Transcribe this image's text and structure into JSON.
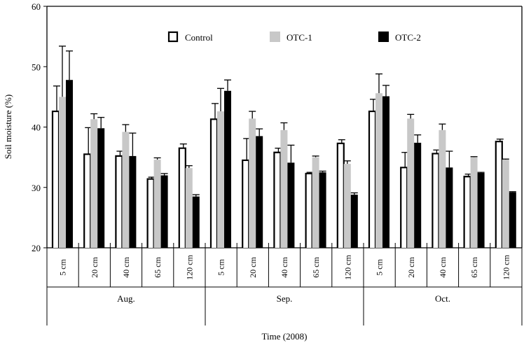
{
  "chart_data": {
    "type": "bar",
    "title": "",
    "ylabel": "Soil moisture (%)",
    "xlabel": "Time (2008)",
    "ylim": [
      20,
      60
    ],
    "yticks": [
      "20",
      "30",
      "40",
      "50",
      "60"
    ],
    "months": [
      "Aug.",
      "Sep.",
      "Oct."
    ],
    "depths": [
      "5 cm",
      "20 cm",
      "40 cm",
      "65 cm",
      "120 cm"
    ],
    "legend_position": "top",
    "series": [
      {
        "name": "Control",
        "color": "#ffffff",
        "stroke": "#000000",
        "values": [
          42.6,
          35.5,
          35.2,
          31.4,
          36.5,
          41.3,
          34.5,
          35.8,
          32.3,
          37.3,
          42.6,
          33.3,
          35.6,
          31.8,
          37.6
        ],
        "errors": [
          4.2,
          4.4,
          0.8,
          0.3,
          0.7,
          2.6,
          3.6,
          0.7,
          0.2,
          0.6,
          2.0,
          2.5,
          0.6,
          0.4,
          0.4
        ]
      },
      {
        "name": "OTC-1",
        "color": "#c8c8c8",
        "stroke": "none",
        "values": [
          45.0,
          41.3,
          39.2,
          34.6,
          33.2,
          42.6,
          41.4,
          39.5,
          35.0,
          33.9,
          45.6,
          41.4,
          39.5,
          35.0,
          34.6
        ],
        "errors": [
          8.4,
          0.9,
          1.2,
          0.3,
          0.4,
          3.8,
          1.2,
          1.2,
          0.2,
          0.5,
          3.2,
          0.7,
          1.0,
          0.1,
          0.1
        ]
      },
      {
        "name": "OTC-2",
        "color": "#000000",
        "stroke": "none",
        "values": [
          47.8,
          39.8,
          35.2,
          32.0,
          28.5,
          46.0,
          38.5,
          34.1,
          32.5,
          28.8,
          45.1,
          37.4,
          33.3,
          32.4,
          29.2
        ],
        "errors": [
          4.8,
          1.8,
          3.8,
          0.3,
          0.3,
          1.8,
          1.2,
          2.9,
          0.2,
          0.3,
          1.8,
          1.3,
          2.7,
          0.1,
          0.1
        ]
      }
    ]
  }
}
